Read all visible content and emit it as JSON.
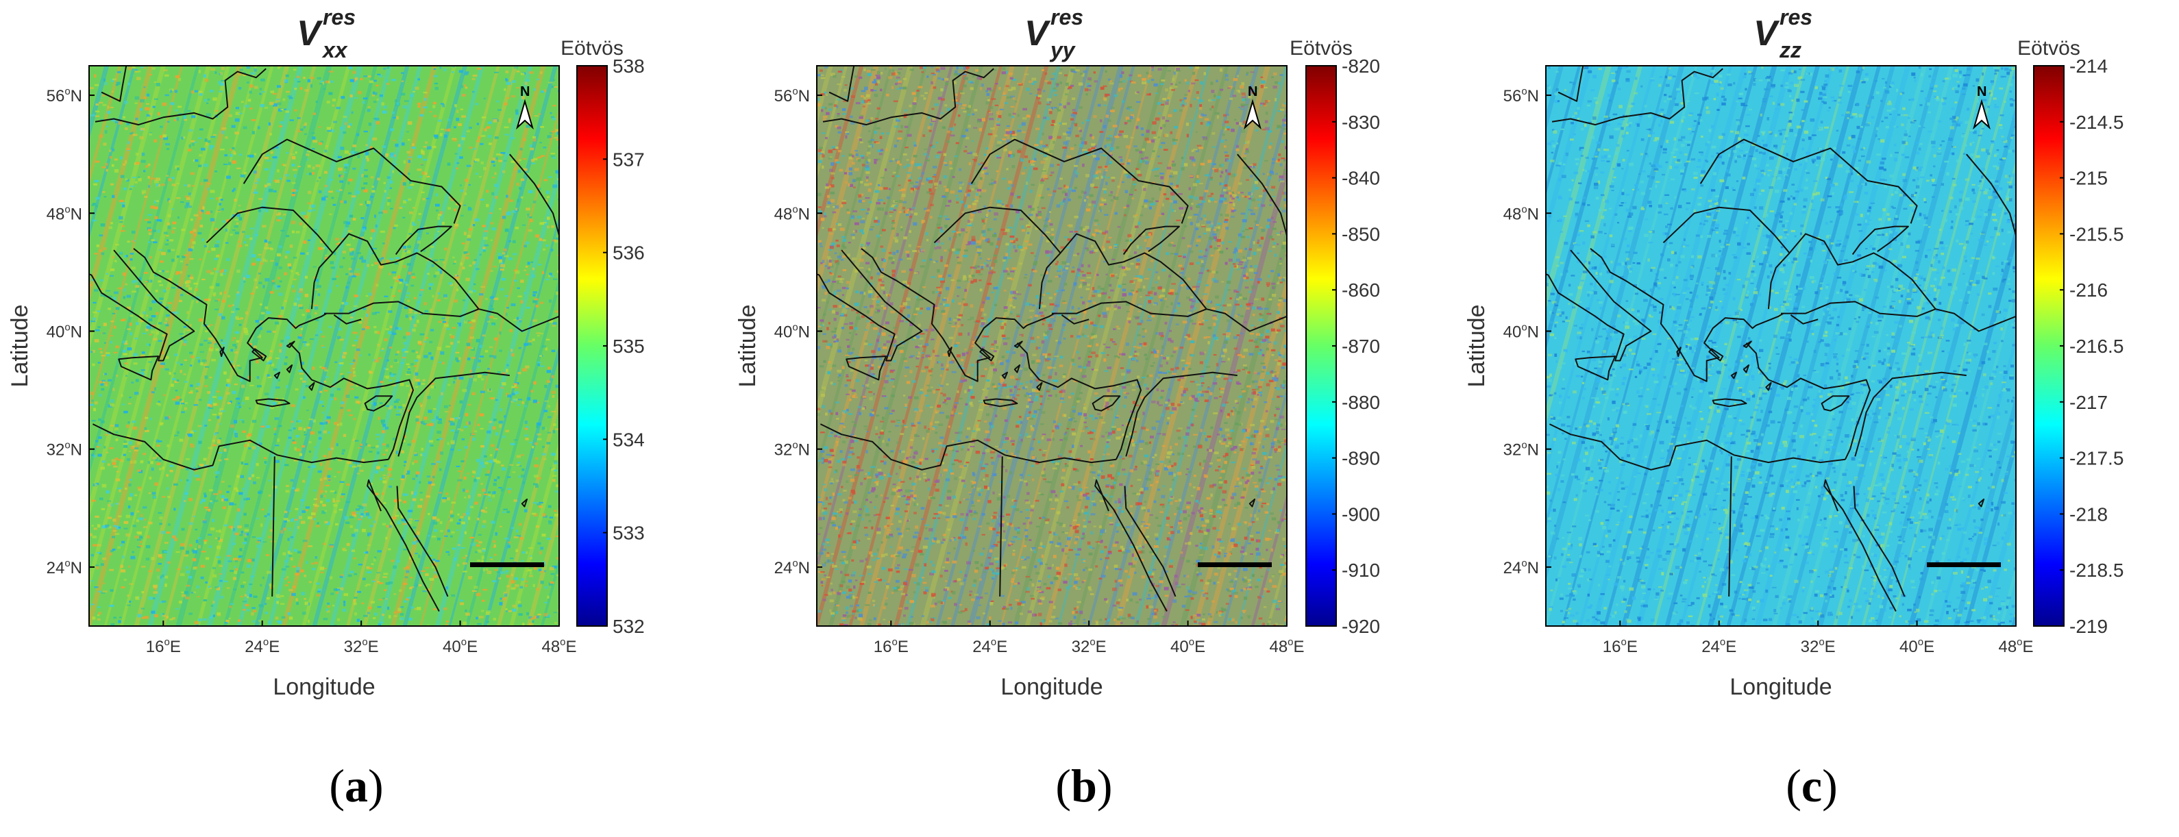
{
  "figure": {
    "panels": [
      {
        "id": "a",
        "caption_letter": "a",
        "title_base": "V",
        "title_sup": "res",
        "title_sub": "xx",
        "colorbar_unit": "Eötvös",
        "colorbar_ticks": [
          "538",
          "537",
          "536",
          "535",
          "534",
          "533",
          "532"
        ],
        "colorbar_range": [
          532,
          538
        ],
        "base_color": "#6ed25a",
        "speckle_colors": [
          "#3fd0d6",
          "#1fb0e8",
          "#b0dc3a",
          "#d8c23a",
          "#f0a030",
          "#2fc0a0"
        ],
        "ylabel": "Latitude",
        "xlabel": "Longitude"
      },
      {
        "id": "b",
        "caption_letter": "b",
        "title_base": "V",
        "title_sup": "res",
        "title_sub": "yy",
        "colorbar_unit": "Eötvös",
        "colorbar_ticks": [
          "-820",
          "-830",
          "-840",
          "-850",
          "-860",
          "-870",
          "-880",
          "-890",
          "-900",
          "-910",
          "-920"
        ],
        "colorbar_range": [
          -920,
          -820
        ],
        "base_color": "#8fa46a",
        "speckle_colors": [
          "#d4543a",
          "#e2a040",
          "#4f8fd0",
          "#3db8c0",
          "#b8c050",
          "#9a5fa0",
          "#6aa060"
        ],
        "ylabel": "Latitude",
        "xlabel": "Longitude"
      },
      {
        "id": "c",
        "caption_letter": "c",
        "title_base": "V",
        "title_sup": "res",
        "title_sub": "zz",
        "colorbar_unit": "Eötvös",
        "colorbar_ticks": [
          "-214",
          "-214.5",
          "-215",
          "-215.5",
          "-216",
          "-216.5",
          "-217",
          "-217.5",
          "-218",
          "-218.5",
          "-219"
        ],
        "colorbar_range": [
          -219,
          -214
        ],
        "base_color": "#3fc8e2",
        "speckle_colors": [
          "#2aa0e0",
          "#55d8d0",
          "#1e88d8",
          "#8adf8a",
          "#35b8f0"
        ],
        "ylabel": "Latitude",
        "xlabel": "Longitude"
      }
    ],
    "lat_ticks": [
      "56",
      "48",
      "40",
      "32",
      "24"
    ],
    "lat_suffix": "N",
    "lon_ticks": [
      "16",
      "24",
      "32",
      "40",
      "48"
    ],
    "lon_suffix": "E",
    "degree_symbol": "o",
    "north_label": "N"
  }
}
